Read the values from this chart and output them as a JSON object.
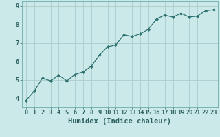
{
  "x": [
    0,
    1,
    2,
    3,
    4,
    5,
    6,
    7,
    8,
    9,
    10,
    11,
    12,
    13,
    14,
    15,
    16,
    17,
    18,
    19,
    20,
    21,
    22,
    23
  ],
  "y": [
    3.9,
    4.4,
    5.1,
    4.95,
    5.25,
    4.95,
    5.3,
    5.45,
    5.75,
    6.35,
    6.8,
    6.9,
    7.45,
    7.35,
    7.5,
    7.75,
    8.3,
    8.5,
    8.4,
    8.6,
    8.4,
    8.45,
    8.75,
    8.8
  ],
  "line_color": "#2d7070",
  "marker": "D",
  "marker_size": 2.0,
  "bg_color": "#cce9e9",
  "grid_color": "#aacccc",
  "tick_color": "#2d6060",
  "xlabel": "Humidex (Indice chaleur)",
  "xlabel_fontsize": 7.5,
  "xlim": [
    -0.5,
    23.5
  ],
  "ylim": [
    3.55,
    9.25
  ],
  "yticks": [
    4,
    5,
    6,
    7,
    8,
    9
  ],
  "xticks": [
    0,
    1,
    2,
    3,
    4,
    5,
    6,
    7,
    8,
    9,
    10,
    11,
    12,
    13,
    14,
    15,
    16,
    17,
    18,
    19,
    20,
    21,
    22,
    23
  ],
  "tick_fontsize": 6.2,
  "linewidth": 0.9
}
